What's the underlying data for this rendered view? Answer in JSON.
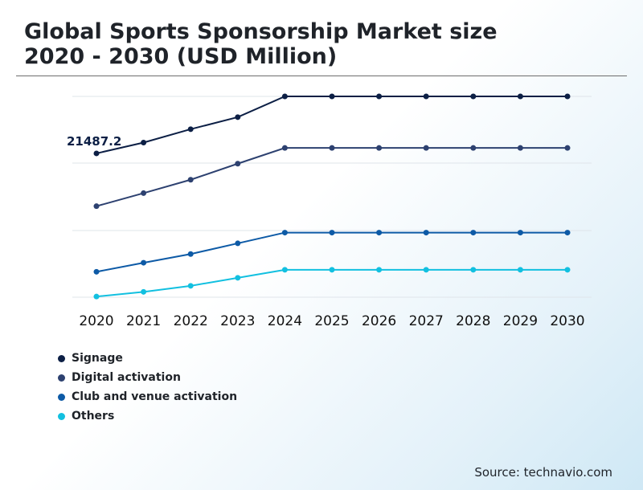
{
  "header": {
    "title_line1": "Global Sports Sponsorship Market size",
    "title_line2": "2020 - 2030 (USD Million)"
  },
  "source": "Source: technavio.com",
  "chart_data": {
    "type": "line",
    "title": "Global Sports Sponsorship Market size 2020 - 2030 (USD Million)",
    "x": [
      "2020",
      "2021",
      "2022",
      "2023",
      "2024",
      "2025",
      "2026",
      "2027",
      "2028",
      "2029",
      "2030"
    ],
    "ylim": [
      0,
      30000
    ],
    "grid": true,
    "legend_position": "bottom-left",
    "annotations": [
      {
        "series": "Signage",
        "x": "2020",
        "label": "21487.2"
      }
    ],
    "series": [
      {
        "name": "Signage",
        "color": "#0c1f45",
        "values": [
          21487.2,
          23100,
          25100,
          26900,
          30000,
          30000,
          30000,
          30000,
          30000,
          30000,
          30000
        ]
      },
      {
        "name": "Digital activation",
        "color": "#2d4170",
        "values": [
          13600,
          15550,
          17550,
          19950,
          22300,
          22300,
          22300,
          22300,
          22300,
          22300,
          22300
        ]
      },
      {
        "name": "Club and venue activation",
        "color": "#0d5aa6",
        "values": [
          3800,
          5150,
          6450,
          8050,
          9650,
          9650,
          9650,
          9650,
          9650,
          9650,
          9650
        ]
      },
      {
        "name": "Others",
        "color": "#12c0e0",
        "values": [
          100,
          800,
          1700,
          2900,
          4100,
          4100,
          4100,
          4100,
          4100,
          4100,
          4100
        ]
      }
    ]
  }
}
